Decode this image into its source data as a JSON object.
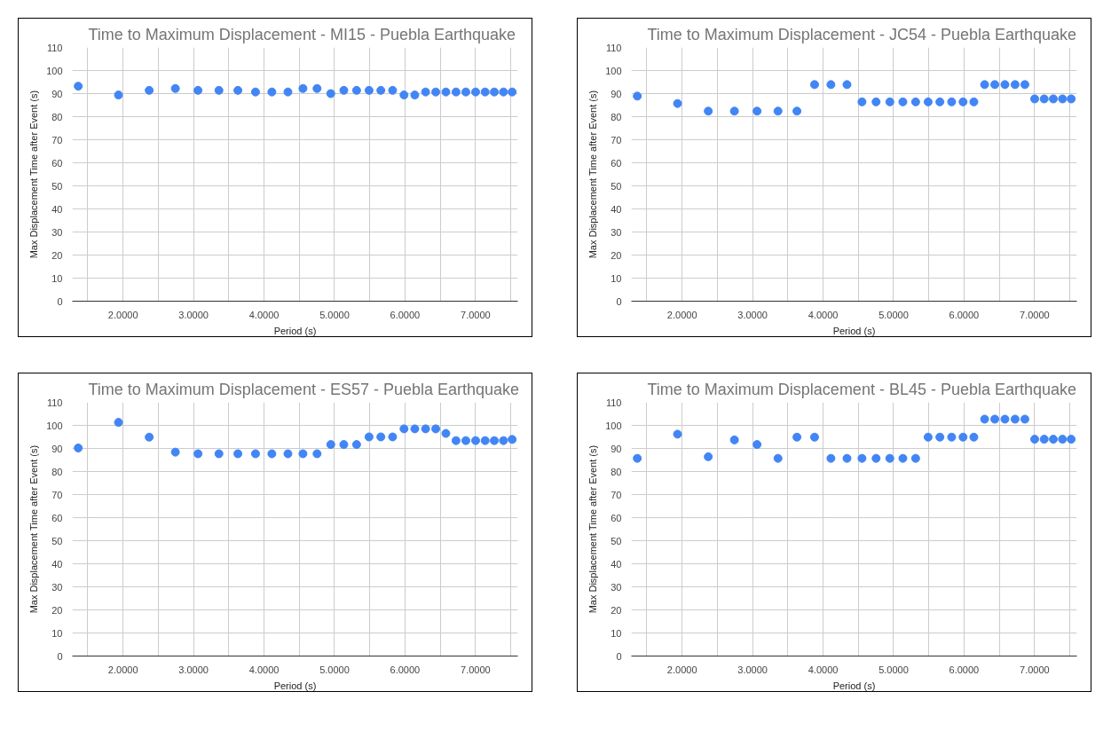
{
  "chart_data": [
    {
      "type": "scatter",
      "title": "Time to Maximum Displacement - MI15 - Puebla Earthquake",
      "xlabel": "Period (s)",
      "ylabel": "Max Displacement Time after Event (s)",
      "marker": "circle",
      "grid": true,
      "xlim": [
        1.28,
        7.6
      ],
      "ylim": [
        0,
        110
      ],
      "xticks": [
        {
          "value": 1.5,
          "label": null
        },
        {
          "value": 2,
          "label": "2.0000"
        },
        {
          "value": 2.5,
          "label": null
        },
        {
          "value": 3,
          "label": "3.0000"
        },
        {
          "value": 3.5,
          "label": null
        },
        {
          "value": 4,
          "label": "4.0000"
        },
        {
          "value": 4.5,
          "label": null
        },
        {
          "value": 5,
          "label": "5.0000"
        },
        {
          "value": 5.5,
          "label": null
        },
        {
          "value": 6,
          "label": "6.0000"
        },
        {
          "value": 6.5,
          "label": null
        },
        {
          "value": 7,
          "label": "7.0000"
        },
        {
          "value": 7.5,
          "label": null
        }
      ],
      "yticks": [
        0,
        10,
        20,
        30,
        40,
        50,
        60,
        70,
        80,
        90,
        100,
        110
      ],
      "x": [
        1.364,
        1.935,
        2.371,
        2.742,
        3.063,
        3.36,
        3.629,
        3.879,
        4.111,
        4.339,
        4.552,
        4.752,
        4.947,
        5.132,
        5.313,
        5.49,
        5.657,
        5.824,
        5.986,
        6.139,
        6.292,
        6.436,
        6.58,
        6.724,
        6.863,
        7.002,
        7.137,
        7.267,
        7.397,
        7.52
      ],
      "series": [
        {
          "color": "#4285f4",
          "values": [
            93.2,
            89.4,
            91.4,
            92.2,
            91.4,
            91.4,
            91.4,
            90.7,
            90.7,
            90.7,
            92.2,
            92.2,
            90.0,
            91.4,
            91.4,
            91.4,
            91.4,
            91.4,
            89.4,
            89.4,
            90.7,
            90.7,
            90.7,
            90.7,
            90.7,
            90.7,
            90.7,
            90.7,
            90.7,
            90.7
          ]
        }
      ]
    },
    {
      "type": "scatter",
      "title": "Time to Maximum Displacement - JC54 - Puebla Earthquake",
      "xlabel": "Period (s)",
      "ylabel": "Max Displacement Time after Event (s)",
      "marker": "circle",
      "grid": true,
      "xlim": [
        1.28,
        7.6
      ],
      "ylim": [
        0,
        110
      ],
      "xticks": [
        {
          "value": 1.5,
          "label": null
        },
        {
          "value": 2,
          "label": "2.0000"
        },
        {
          "value": 2.5,
          "label": null
        },
        {
          "value": 3,
          "label": "3.0000"
        },
        {
          "value": 3.5,
          "label": null
        },
        {
          "value": 4,
          "label": "4.0000"
        },
        {
          "value": 4.5,
          "label": null
        },
        {
          "value": 5,
          "label": "5.0000"
        },
        {
          "value": 5.5,
          "label": null
        },
        {
          "value": 6,
          "label": "6.0000"
        },
        {
          "value": 6.5,
          "label": null
        },
        {
          "value": 7,
          "label": "7.0000"
        },
        {
          "value": 7.5,
          "label": null
        }
      ],
      "yticks": [
        0,
        10,
        20,
        30,
        40,
        50,
        60,
        70,
        80,
        90,
        100,
        110
      ],
      "x": [
        1.364,
        1.935,
        2.371,
        2.742,
        3.063,
        3.36,
        3.629,
        3.879,
        4.111,
        4.339,
        4.552,
        4.752,
        4.947,
        5.132,
        5.313,
        5.49,
        5.657,
        5.824,
        5.986,
        6.139,
        6.292,
        6.436,
        6.58,
        6.724,
        6.863,
        7.002,
        7.137,
        7.267,
        7.397,
        7.52
      ],
      "series": [
        {
          "color": "#4285f4",
          "values": [
            88.9,
            85.7,
            82.4,
            82.4,
            82.4,
            82.4,
            82.4,
            93.9,
            93.9,
            93.9,
            86.4,
            86.4,
            86.4,
            86.4,
            86.4,
            86.4,
            86.4,
            86.4,
            86.4,
            86.4,
            93.9,
            93.9,
            93.9,
            93.9,
            93.9,
            87.7,
            87.7,
            87.7,
            87.7,
            87.7
          ]
        }
      ]
    },
    {
      "type": "scatter",
      "title": "Time to Maximum Displacement - ES57 - Puebla Earthquake",
      "xlabel": "Period (s)",
      "ylabel": "Max Displacement Time after Event (s)",
      "marker": "circle",
      "grid": true,
      "xlim": [
        1.28,
        7.6
      ],
      "ylim": [
        0,
        110
      ],
      "xticks": [
        {
          "value": 1.5,
          "label": null
        },
        {
          "value": 2,
          "label": "2.0000"
        },
        {
          "value": 2.5,
          "label": null
        },
        {
          "value": 3,
          "label": "3.0000"
        },
        {
          "value": 3.5,
          "label": null
        },
        {
          "value": 4,
          "label": "4.0000"
        },
        {
          "value": 4.5,
          "label": null
        },
        {
          "value": 5,
          "label": "5.0000"
        },
        {
          "value": 5.5,
          "label": null
        },
        {
          "value": 6,
          "label": "6.0000"
        },
        {
          "value": 6.5,
          "label": null
        },
        {
          "value": 7,
          "label": "7.0000"
        },
        {
          "value": 7.5,
          "label": null
        }
      ],
      "yticks": [
        0,
        10,
        20,
        30,
        40,
        50,
        60,
        70,
        80,
        90,
        100,
        110
      ],
      "x": [
        1.364,
        1.935,
        2.371,
        2.742,
        3.063,
        3.36,
        3.629,
        3.879,
        4.111,
        4.339,
        4.552,
        4.752,
        4.947,
        5.132,
        5.313,
        5.49,
        5.657,
        5.824,
        5.986,
        6.139,
        6.292,
        6.436,
        6.58,
        6.724,
        6.863,
        7.002,
        7.137,
        7.267,
        7.397,
        7.52
      ],
      "series": [
        {
          "color": "#4285f4",
          "values": [
            90.2,
            101.3,
            94.9,
            88.4,
            87.7,
            87.7,
            87.7,
            87.7,
            87.7,
            87.7,
            87.7,
            87.7,
            91.7,
            91.7,
            91.7,
            95.0,
            95.0,
            95.0,
            98.5,
            98.5,
            98.5,
            98.5,
            96.5,
            93.4,
            93.4,
            93.4,
            93.4,
            93.4,
            93.4,
            93.9
          ]
        }
      ]
    },
    {
      "type": "scatter",
      "title": "Time to Maximum Displacement - BL45 - Puebla Earthquake",
      "xlabel": "Period (s)",
      "ylabel": "Max Displacement Time after Event (s)",
      "marker": "circle",
      "grid": true,
      "xlim": [
        1.28,
        7.6
      ],
      "ylim": [
        0,
        110
      ],
      "xticks": [
        {
          "value": 1.5,
          "label": null
        },
        {
          "value": 2,
          "label": "2.0000"
        },
        {
          "value": 2.5,
          "label": null
        },
        {
          "value": 3,
          "label": "3.0000"
        },
        {
          "value": 3.5,
          "label": null
        },
        {
          "value": 4,
          "label": "4.0000"
        },
        {
          "value": 4.5,
          "label": null
        },
        {
          "value": 5,
          "label": "5.0000"
        },
        {
          "value": 5.5,
          "label": null
        },
        {
          "value": 6,
          "label": "6.0000"
        },
        {
          "value": 6.5,
          "label": null
        },
        {
          "value": 7,
          "label": "7.0000"
        },
        {
          "value": 7.5,
          "label": null
        }
      ],
      "yticks": [
        0,
        10,
        20,
        30,
        40,
        50,
        60,
        70,
        80,
        90,
        100,
        110
      ],
      "x": [
        1.364,
        1.935,
        2.371,
        2.742,
        3.063,
        3.36,
        3.629,
        3.879,
        4.111,
        4.339,
        4.552,
        4.752,
        4.947,
        5.132,
        5.313,
        5.49,
        5.657,
        5.824,
        5.986,
        6.139,
        6.292,
        6.436,
        6.58,
        6.724,
        6.863,
        7.002,
        7.137,
        7.267,
        7.397,
        7.52
      ],
      "series": [
        {
          "color": "#4285f4",
          "values": [
            85.7,
            96.2,
            86.4,
            93.7,
            91.7,
            85.7,
            94.9,
            94.9,
            85.7,
            85.7,
            85.7,
            85.7,
            85.7,
            85.7,
            85.7,
            94.9,
            94.9,
            94.9,
            94.9,
            94.9,
            102.7,
            102.7,
            102.7,
            102.7,
            102.7,
            94.0,
            94.0,
            94.0,
            94.0,
            94.0
          ]
        }
      ]
    }
  ]
}
